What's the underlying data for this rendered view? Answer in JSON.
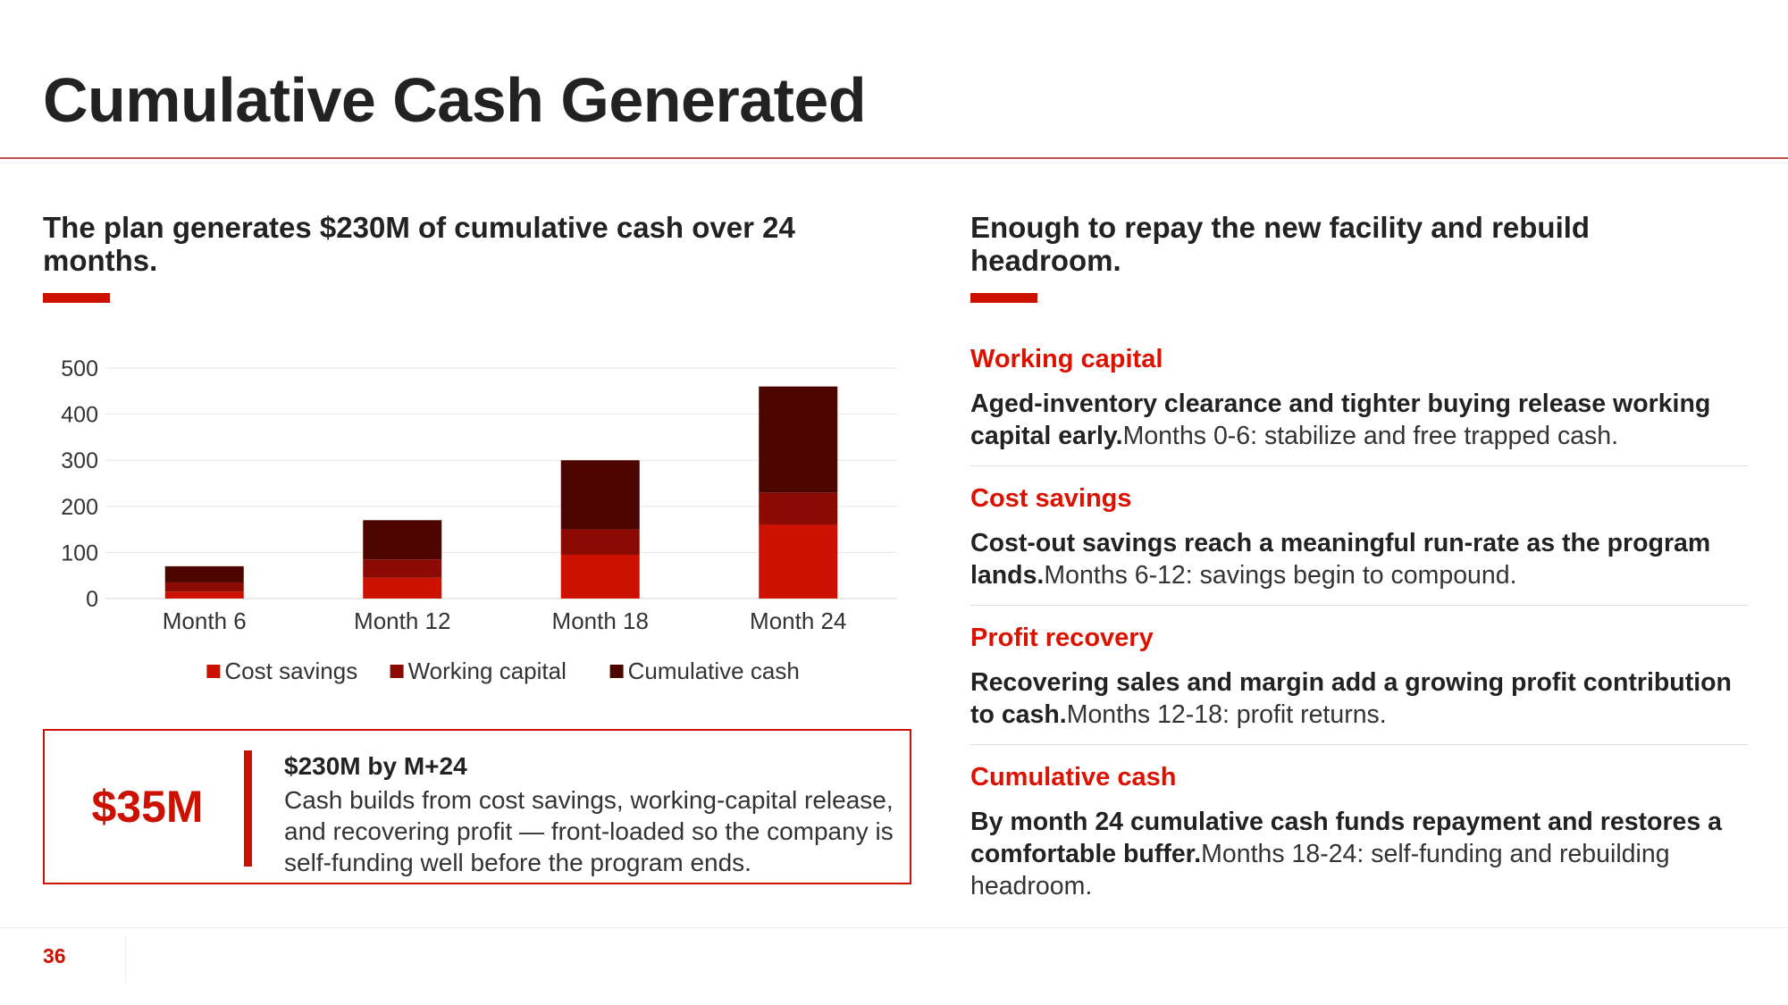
{
  "slide": {
    "title": "Cumulative Cash Generated",
    "page_number": "36"
  },
  "left": {
    "heading": "The plan generates $230M of cumulative cash over 24 months.",
    "callout": {
      "big_value": "$35M",
      "heading": "$230M by M+24",
      "body": "Cash builds from cost savings, working-capital release, and recovering profit — front-loaded so the company is self-funding well before the program ends."
    }
  },
  "right": {
    "heading": "Enough to repay the new facility and rebuild headroom.",
    "findings": [
      {
        "label": "Working capital",
        "bold": "Aged-inventory clearance and tighter buying release working capital early.",
        "detail": "Months 0-6: stabilize and free trapped cash."
      },
      {
        "label": "Cost savings",
        "bold": "Cost-out savings reach a meaningful run-rate as the program lands.",
        "detail": "Months 6-12: savings begin to compound."
      },
      {
        "label": "Profit recovery",
        "bold": "Recovering sales and margin add a growing profit contribution to cash.",
        "detail": "Months 12-18: profit returns."
      },
      {
        "label": "Cumulative cash",
        "bold": "By month 24 cumulative cash funds repayment and restores a comfortable buffer.",
        "detail": "Months 18-24: self-funding and rebuilding headroom."
      }
    ]
  },
  "colors": {
    "accent": "#cc1100",
    "series": [
      "#cc1100",
      "#8b0b04",
      "#4d0500"
    ]
  },
  "chart_data": {
    "type": "bar",
    "stacked": true,
    "categories": [
      "Month 6",
      "Month 12",
      "Month 18",
      "Month 24"
    ],
    "series": [
      {
        "name": "Cost savings",
        "values": [
          15,
          45,
          95,
          160
        ]
      },
      {
        "name": "Working capital",
        "values": [
          20,
          40,
          55,
          70
        ]
      },
      {
        "name": "Cumulative cash",
        "values": [
          35,
          85,
          150,
          230
        ]
      }
    ],
    "ylim": [
      0,
      500
    ],
    "yticks": [
      0,
      100,
      200,
      300,
      400,
      500
    ],
    "grid": true,
    "legend": "bottom"
  }
}
